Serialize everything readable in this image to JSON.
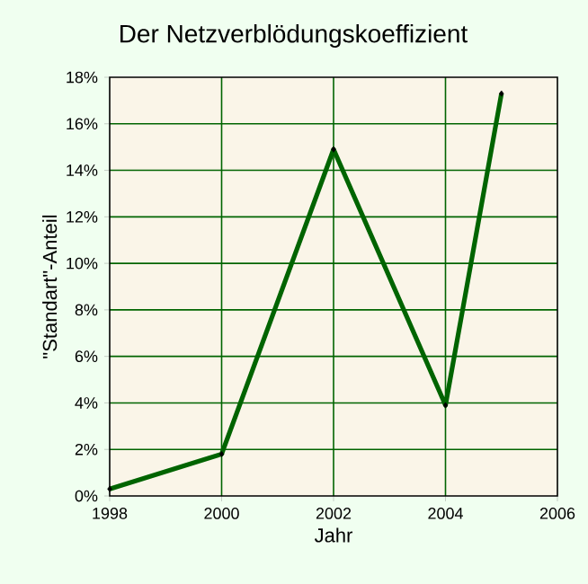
{
  "chart_data": {
    "type": "line",
    "title": "Der Netzverblödungskoeffizient",
    "xlabel": "Jahr",
    "ylabel": "\"Standart\"-Anteil",
    "x": [
      1998,
      2000,
      2002,
      2004,
      2005
    ],
    "series": [
      {
        "color": "#006400",
        "values": [
          0.3,
          1.8,
          14.9,
          3.9,
          17.3
        ]
      }
    ],
    "xlim": [
      1998,
      2006
    ],
    "xticks": [
      1998,
      2000,
      2002,
      2004,
      2006
    ],
    "ylim": [
      0,
      18
    ],
    "yticks": [
      {
        "value": 0,
        "label": "0%"
      },
      {
        "value": 2,
        "label": "2%"
      },
      {
        "value": 4,
        "label": "4%"
      },
      {
        "value": 6,
        "label": "6%"
      },
      {
        "value": 8,
        "label": "8%"
      },
      {
        "value": 10,
        "label": "10%"
      },
      {
        "value": 12,
        "label": "12%"
      },
      {
        "value": 14,
        "label": "14%"
      },
      {
        "value": 16,
        "label": "16%"
      },
      {
        "value": 18,
        "label": "18%"
      }
    ],
    "grid": true,
    "marker": "diamond",
    "line_style": "solid"
  }
}
